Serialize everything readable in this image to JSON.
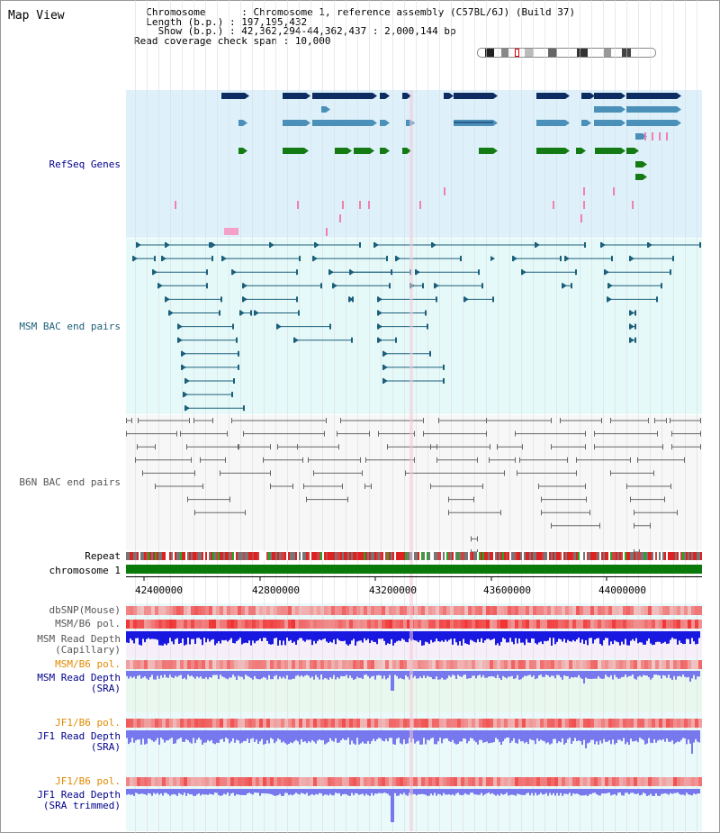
{
  "header": {
    "title": "Map View",
    "chromosome_label": "Chromosome      : ",
    "chromosome_value": "Chromosome 1, reference assembly (C57BL/6J) (Build 37)",
    "length_label": "Length (b.p.) : ",
    "length_value": "197,195,432",
    "show_label": "Show (b.p.) : ",
    "show_value": "42,362,294-44,362,437 : 2,000,144 bp",
    "coverage_label": "Read coverage check span : ",
    "coverage_value": "10,000"
  },
  "tracks": {
    "refseq": "RefSeq Genes",
    "msm_bac": "MSM BAC end pairs",
    "b6n_bac": "B6N BAC end pairs",
    "repeat": "Repeat",
    "chromosome": "chromosome 1",
    "dbsnp": "dbSNP(Mouse)",
    "msm_b6_pol_1": "MSM/B6 pol.",
    "msm_read_depth_cap_1": "MSM Read Depth",
    "msm_read_depth_cap_2": "(Capillary)",
    "msm_b6_pol_2": "MSM/B6 pol.",
    "msm_read_depth_sra_1": "MSM Read Depth",
    "msm_read_depth_sra_2": "(SRA)",
    "jf1_b6_pol_1": "JF1/B6 pol.",
    "jf1_read_depth_1": "JF1 Read Depth",
    "jf1_read_depth_2": "(SRA)",
    "jf1_b6_pol_2": "JF1/B6 pol.",
    "jf1_read_depth_trim_1": "JF1 Read Depth",
    "jf1_read_depth_trim_2": "(SRA trimmed)"
  },
  "axis": {
    "ticks": [
      "42400000",
      "42800000",
      "43200000",
      "43600000",
      "44000000"
    ]
  },
  "colors": {
    "refseq_bg": "#def1fa",
    "msm_bg": "#e6f9f9",
    "b6n_bg": "#f2f2f2",
    "gene_dark": "#0c2c62",
    "gene_mid": "#4a90b8",
    "gene_green": "#147a14",
    "bac_teal": "#1b5f7a",
    "bac_gray": "#555555",
    "chrom_green": "#0a7a0a",
    "depth_blue": "#1818e0",
    "depth_light": "#7777ee",
    "label_blue": "#00008b",
    "label_orange": "#e08a00"
  }
}
